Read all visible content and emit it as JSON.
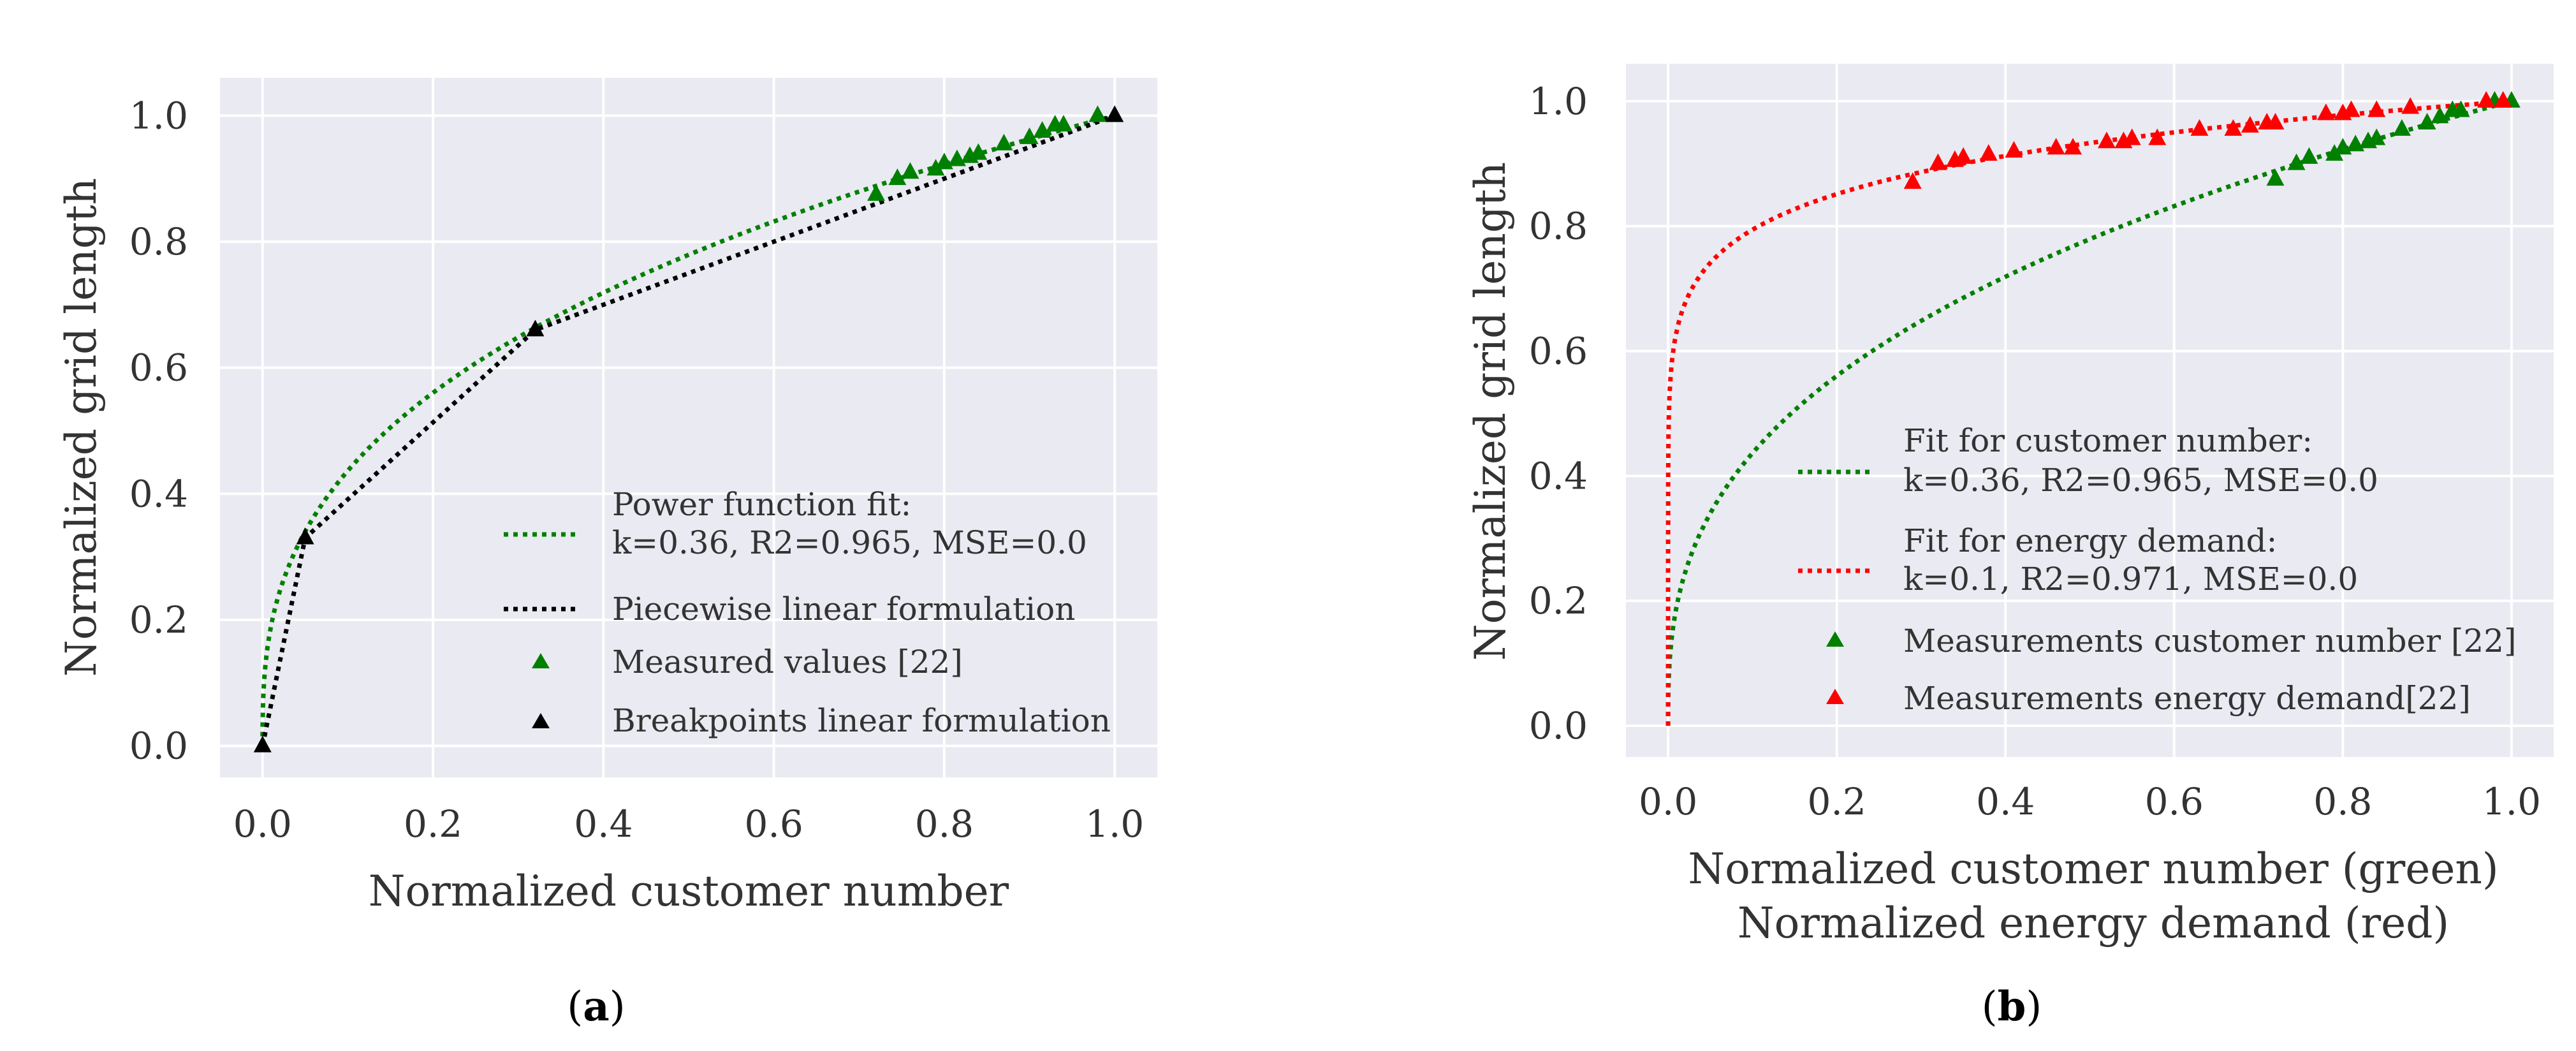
{
  "chart_data": [
    {
      "type": "line",
      "panel": "a",
      "caption": {
        "open": "(",
        "letter": "a",
        "close": ")"
      },
      "xlabel": "Normalized customer number",
      "ylabel": "Normalized grid length",
      "xlim": [
        -0.05,
        1.05
      ],
      "ylim": [
        -0.05,
        1.06
      ],
      "xticks": [
        0.0,
        0.2,
        0.4,
        0.6,
        0.8,
        1.0
      ],
      "xtick_labels": [
        "0.0",
        "0.2",
        "0.4",
        "0.6",
        "0.8",
        "1.0"
      ],
      "yticks": [
        0.0,
        0.2,
        0.4,
        0.6,
        0.8,
        1.0
      ],
      "ytick_labels": [
        "0.0",
        "0.2",
        "0.4",
        "0.6",
        "0.8",
        "1.0"
      ],
      "grid": true,
      "legend_position": "lower-right",
      "series": [
        {
          "name": "Power function fit",
          "legend_lines": [
            "Power function fit:",
            "k=0.36, R2=0.965, MSE=0.0"
          ],
          "kind": "power_curve",
          "exponent": 0.36,
          "color": "#008000",
          "style": "dotted"
        },
        {
          "name": "Piecewise linear formulation",
          "legend_lines": [
            "Piecewise linear formulation"
          ],
          "kind": "line",
          "color": "#000000",
          "style": "dotted",
          "x": [
            0.0,
            0.05,
            0.32,
            1.0
          ],
          "y": [
            0.0,
            0.33,
            0.66,
            1.0
          ]
        },
        {
          "name": "Measured values [22]",
          "legend_lines": [
            "Measured values [22]"
          ],
          "kind": "markers",
          "marker": "triangle",
          "color": "#008000",
          "x": [
            0.72,
            0.745,
            0.76,
            0.79,
            0.8,
            0.815,
            0.83,
            0.84,
            0.87,
            0.9,
            0.915,
            0.93,
            0.94,
            0.98,
            1.0
          ],
          "y": [
            0.875,
            0.9,
            0.91,
            0.915,
            0.925,
            0.93,
            0.935,
            0.94,
            0.955,
            0.965,
            0.975,
            0.985,
            0.985,
            1.0,
            1.0
          ]
        },
        {
          "name": "Breakpoints linear formulation",
          "legend_lines": [
            "Breakpoints linear formulation"
          ],
          "kind": "markers",
          "marker": "triangle",
          "color": "#000000",
          "x": [
            0.0,
            0.05,
            0.32,
            1.0
          ],
          "y": [
            0.0,
            0.33,
            0.66,
            1.0
          ]
        }
      ]
    },
    {
      "type": "line",
      "panel": "b",
      "caption": {
        "open": "(",
        "letter": "b",
        "close": ")"
      },
      "xlabel": "Normalized customer number (green)",
      "xlabel2": "Normalized energy demand (red)",
      "ylabel": "Normalized grid length",
      "xlim": [
        -0.05,
        1.05
      ],
      "ylim": [
        -0.05,
        1.06
      ],
      "xticks": [
        0.0,
        0.2,
        0.4,
        0.6,
        0.8,
        1.0
      ],
      "xtick_labels": [
        "0.0",
        "0.2",
        "0.4",
        "0.6",
        "0.8",
        "1.0"
      ],
      "yticks": [
        0.0,
        0.2,
        0.4,
        0.6,
        0.8,
        1.0
      ],
      "ytick_labels": [
        "0.0",
        "0.2",
        "0.4",
        "0.6",
        "0.8",
        "1.0"
      ],
      "grid": true,
      "legend_position": "lower-right",
      "series": [
        {
          "name": "Fit for customer number",
          "legend_lines": [
            "Fit for customer number:",
            "k=0.36, R2=0.965, MSE=0.0"
          ],
          "kind": "power_curve",
          "exponent": 0.36,
          "color": "#008000",
          "style": "dotted"
        },
        {
          "name": "Fit for energy demand",
          "legend_lines": [
            "Fit for energy demand:",
            "k=0.1, R2=0.971, MSE=0.0"
          ],
          "kind": "power_curve",
          "exponent": 0.1,
          "color": "#ff0000",
          "style": "dotted"
        },
        {
          "name": "Measurements customer number [22]",
          "legend_lines": [
            "Measurements customer number [22]"
          ],
          "kind": "markers",
          "marker": "triangle",
          "color": "#008000",
          "x": [
            0.72,
            0.745,
            0.76,
            0.79,
            0.8,
            0.815,
            0.83,
            0.84,
            0.87,
            0.9,
            0.915,
            0.93,
            0.94,
            0.98,
            1.0
          ],
          "y": [
            0.875,
            0.9,
            0.91,
            0.915,
            0.925,
            0.93,
            0.935,
            0.94,
            0.955,
            0.965,
            0.975,
            0.985,
            0.985,
            1.0,
            1.0
          ]
        },
        {
          "name": "Measurements energy demand[22]",
          "legend_lines": [
            "Measurements energy demand[22]"
          ],
          "kind": "markers",
          "marker": "triangle",
          "color": "#ff0000",
          "x": [
            0.29,
            0.32,
            0.34,
            0.35,
            0.38,
            0.41,
            0.46,
            0.48,
            0.52,
            0.54,
            0.55,
            0.58,
            0.63,
            0.67,
            0.69,
            0.71,
            0.72,
            0.78,
            0.8,
            0.81,
            0.84,
            0.88,
            0.97,
            0.99
          ],
          "y": [
            0.87,
            0.9,
            0.905,
            0.91,
            0.915,
            0.92,
            0.925,
            0.925,
            0.935,
            0.935,
            0.94,
            0.94,
            0.955,
            0.955,
            0.96,
            0.965,
            0.965,
            0.98,
            0.98,
            0.985,
            0.985,
            0.99,
            1.0,
            1.0
          ]
        }
      ]
    }
  ]
}
